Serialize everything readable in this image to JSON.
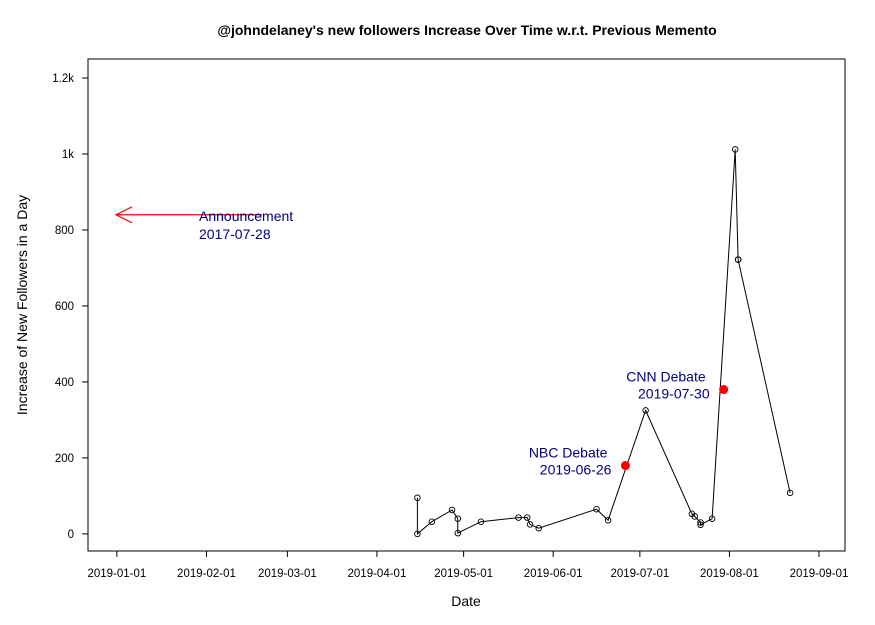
{
  "chart_data": {
    "type": "line",
    "title": "@johndelaney's new followers Increase Over Time w.r.t. Previous Memento",
    "xlabel": "Date",
    "ylabel": "Increase of New Followers in a Day",
    "xlim": [
      "2018-12-22",
      "2019-09-10"
    ],
    "ylim": [
      -45,
      1250
    ],
    "x_ticks": [
      "2019-01-01",
      "2019-02-01",
      "2019-03-01",
      "2019-04-01",
      "2019-05-01",
      "2019-06-01",
      "2019-07-01",
      "2019-08-01",
      "2019-09-01"
    ],
    "y_ticks": [
      0,
      200,
      400,
      600,
      800,
      1000,
      1200
    ],
    "y_tick_labels": [
      "0",
      "200",
      "400",
      "600",
      "800",
      "1k",
      "1.2k"
    ],
    "series": [
      {
        "x": [
          "2019-04-15",
          "2019-04-15",
          "2019-04-20",
          "2019-04-27",
          "2019-04-29",
          "2019-04-29",
          "2019-05-07",
          "2019-05-20",
          "2019-05-23",
          "2019-05-24",
          "2019-05-27",
          "2019-06-16",
          "2019-06-20",
          "2019-07-03",
          "2019-07-19",
          "2019-07-20",
          "2019-07-22",
          "2019-07-22",
          "2019-07-26",
          "2019-08-03",
          "2019-08-04",
          "2019-08-04",
          "2019-08-22"
        ],
        "y": [
          95,
          0,
          32,
          63,
          40,
          2,
          32,
          43,
          43,
          25,
          15,
          65,
          36,
          325,
          53,
          46,
          30,
          24,
          40,
          1012,
          722,
          722,
          108
        ]
      }
    ],
    "events": [
      {
        "label": "NBC Debate",
        "date": "2019-06-26",
        "value": 180
      },
      {
        "label": "CNN Debate",
        "date": "2019-07-30",
        "value": 380
      }
    ],
    "announcement": {
      "label": "Announcement",
      "date": "2017-07-28",
      "arrow_y": 840
    },
    "colors": {
      "series": "#000000",
      "event": "#ff0000",
      "annotation_text": "#000080",
      "arrow": "#ff0000"
    }
  }
}
